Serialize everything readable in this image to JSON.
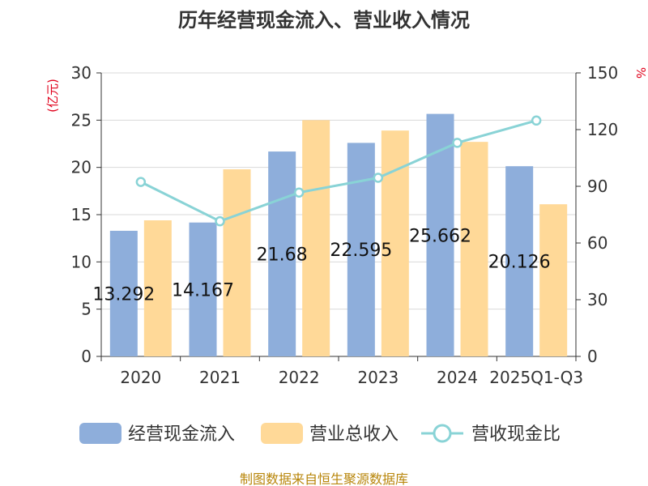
{
  "chart_data": {
    "type": "bar",
    "title": "历年经营现金流入、营业收入情况",
    "categories": [
      "2020",
      "2021",
      "2022",
      "2023",
      "2024",
      "2025Q1-Q3"
    ],
    "series": [
      {
        "name": "经营现金流入",
        "type": "bar",
        "axis": "left",
        "color": "#8eaedb",
        "values": [
          13.292,
          14.167,
          21.68,
          22.595,
          25.662,
          20.126
        ],
        "labels": [
          "13.292",
          "14.167",
          "21.68",
          "22.595",
          "25.662",
          "20.126"
        ]
      },
      {
        "name": "营业总收入",
        "type": "bar",
        "axis": "left",
        "color": "#ffd998",
        "values": [
          14.4,
          19.8,
          25.0,
          23.9,
          22.7,
          16.1
        ]
      },
      {
        "name": "营收现金比",
        "type": "line",
        "axis": "right",
        "color": "#89d3d6",
        "values": [
          92.3,
          71.5,
          86.7,
          94.5,
          113.0,
          124.8
        ]
      }
    ],
    "y_left": {
      "unit": "(亿元)",
      "min": 0,
      "max": 30,
      "ticks": [
        0,
        5,
        10,
        15,
        20,
        25,
        30
      ]
    },
    "y_right": {
      "unit": "%",
      "min": 0,
      "max": 150,
      "ticks": [
        0,
        30,
        60,
        90,
        120,
        150
      ]
    },
    "grid": true,
    "legend_position": "bottom"
  },
  "source": "制图数据来自恒生聚源数据库"
}
